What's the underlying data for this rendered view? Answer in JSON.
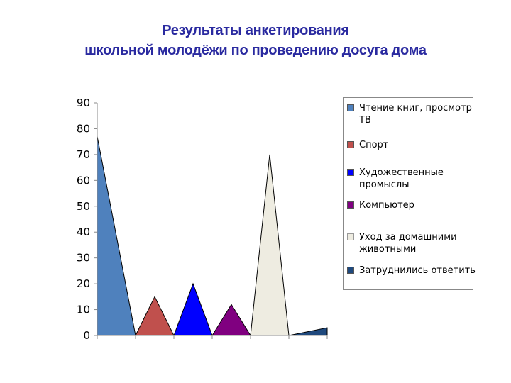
{
  "title_line1": "Результаты анкетирования",
  "title_line2": "школьной молодёжи по проведению досуга дома",
  "chart_data": {
    "type": "area",
    "categories": [
      "Чтение книг, просмотр ТВ",
      "Спорт",
      "Художественные промыслы",
      "Компьютер",
      "Уход за домашними животными",
      "Затруднились ответить"
    ],
    "values": [
      77,
      15,
      20,
      12,
      70,
      3
    ],
    "ylim": [
      0,
      90
    ],
    "yticks": [
      0,
      10,
      20,
      30,
      40,
      50,
      60,
      70,
      80,
      90
    ],
    "legend_position": "right",
    "grid": false,
    "series": [
      {
        "label": "Чтение книг, просмотр ТВ",
        "value": 77,
        "color": "#4f81bd"
      },
      {
        "label": "Спорт",
        "value": 15,
        "color": "#c0504d"
      },
      {
        "label": "Художественные промыслы",
        "value": 20,
        "color": "#0000ff"
      },
      {
        "label": "Компьютер",
        "value": 12,
        "color": "#800080"
      },
      {
        "label": "Уход за домашними животными",
        "value": 70,
        "color": "#eeece1"
      },
      {
        "label": "Затруднились ответить",
        "value": 3,
        "color": "#1f497d"
      }
    ]
  }
}
